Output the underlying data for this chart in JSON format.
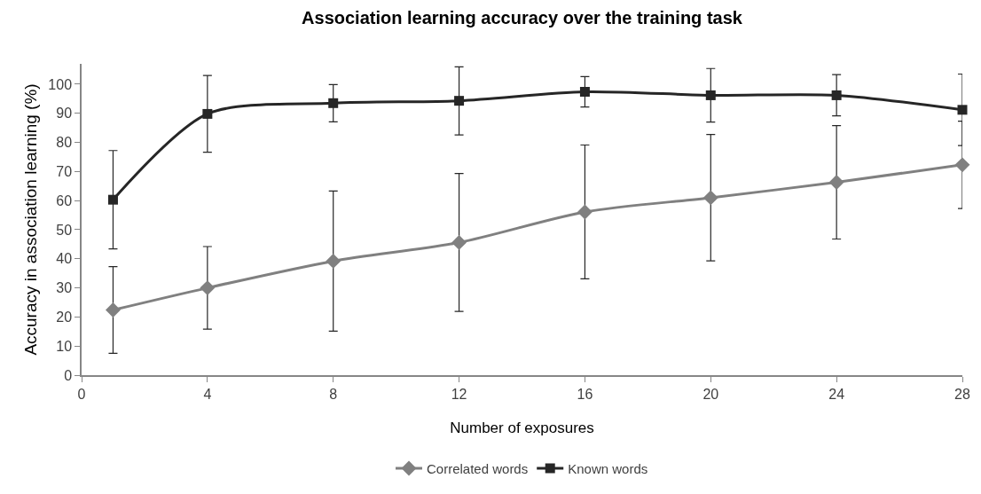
{
  "chart_data": {
    "type": "line",
    "title": "Association learning accuracy over the training task",
    "xlabel": "Number of exposures",
    "ylabel": "Accuracy in association learning (%)",
    "x": [
      1,
      4,
      8,
      12,
      16,
      20,
      24,
      28
    ],
    "series": [
      {
        "name": "Correlated words",
        "color": "#808080",
        "marker": "diamond",
        "values": [
          22.4,
          30.0,
          39.2,
          45.6,
          56.1,
          61.0,
          66.3,
          72.3
        ],
        "errors": [
          14.9,
          14.2,
          24.1,
          23.7,
          23.0,
          21.7,
          19.5,
          15.0
        ]
      },
      {
        "name": "Known words",
        "color": "#262626",
        "marker": "square",
        "values": [
          60.3,
          89.8,
          93.5,
          94.3,
          97.4,
          96.2,
          96.2,
          91.2
        ],
        "errors": [
          16.9,
          13.2,
          6.4,
          11.7,
          5.2,
          9.2,
          7.1,
          12.3
        ]
      }
    ],
    "xlim": [
      0,
      28
    ],
    "xticks": [
      0,
      4,
      8,
      12,
      16,
      20,
      24,
      28
    ],
    "ylim": [
      0,
      107
    ],
    "yticks": [
      0,
      10,
      20,
      30,
      40,
      50,
      60,
      70,
      80,
      90,
      100
    ],
    "line_style": "solid",
    "legend": "bottom"
  }
}
